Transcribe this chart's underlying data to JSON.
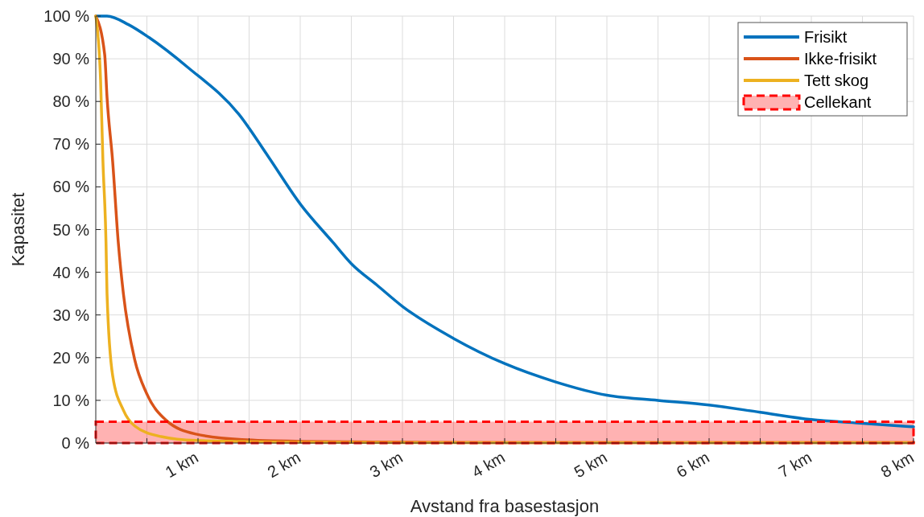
{
  "chart_data": {
    "type": "line",
    "xlabel": "Avstand fra basestasjon",
    "ylabel": "Kapasitet",
    "xlim": [
      0,
      8
    ],
    "ylim": [
      0,
      100
    ],
    "xticks": [
      {
        "value": 0.5,
        "label": null
      },
      {
        "value": 1,
        "label": "1 km"
      },
      {
        "value": 1.5,
        "label": null
      },
      {
        "value": 2,
        "label": "2 km"
      },
      {
        "value": 2.5,
        "label": null
      },
      {
        "value": 3,
        "label": "3 km"
      },
      {
        "value": 3.5,
        "label": null
      },
      {
        "value": 4,
        "label": "4 km"
      },
      {
        "value": 4.5,
        "label": null
      },
      {
        "value": 5,
        "label": "5 km"
      },
      {
        "value": 5.5,
        "label": null
      },
      {
        "value": 6,
        "label": "6 km"
      },
      {
        "value": 6.5,
        "label": null
      },
      {
        "value": 7,
        "label": "7 km"
      },
      {
        "value": 7.5,
        "label": null
      },
      {
        "value": 8,
        "label": "8 km"
      }
    ],
    "yticks": [
      {
        "value": 0,
        "label": "0 %"
      },
      {
        "value": 10,
        "label": "10 %"
      },
      {
        "value": 20,
        "label": "20 %"
      },
      {
        "value": 30,
        "label": "30 %"
      },
      {
        "value": 40,
        "label": "40 %"
      },
      {
        "value": 50,
        "label": "50 %"
      },
      {
        "value": 60,
        "label": "60 %"
      },
      {
        "value": 70,
        "label": "70 %"
      },
      {
        "value": 80,
        "label": "80 %"
      },
      {
        "value": 90,
        "label": "90 %"
      },
      {
        "value": 100,
        "label": "100 %"
      }
    ],
    "grid": true,
    "legend": "top right",
    "line_style": "solid",
    "marker": "none",
    "series": [
      {
        "name": "Frisikt",
        "color": "#0072bd",
        "x": [
          0,
          0.11,
          0.32,
          0.52,
          0.9,
          1.4,
          1.69,
          2.0,
          2.32,
          2.5,
          2.75,
          3,
          3.5,
          4,
          4.5,
          5,
          5.5,
          6,
          6.5,
          7,
          7.5,
          8
        ],
        "values": [
          100,
          100,
          98,
          95,
          88,
          77,
          67,
          56,
          47,
          42,
          37,
          32,
          24.5,
          18.6,
          14.3,
          11.2,
          10,
          8.9,
          7.2,
          5.5,
          4.6,
          3.8
        ]
      },
      {
        "name": "Ikke-frisikt",
        "color": "#d95319",
        "x": [
          0,
          0.087,
          0.11,
          0.165,
          0.22,
          0.27,
          0.38,
          0.5,
          0.69,
          0.98,
          1.43,
          2,
          3,
          4,
          5,
          6,
          7,
          8
        ],
        "values": [
          100,
          91,
          81,
          66,
          47,
          35,
          19.6,
          11.5,
          5.3,
          2.1,
          0.8,
          0.4,
          0.2,
          0.1,
          0.1,
          0.1,
          0.1,
          0.1
        ]
      },
      {
        "name": "Tett skog",
        "color": "#edb120",
        "x": [
          0,
          0.047,
          0.07,
          0.1,
          0.11,
          0.165,
          0.27,
          0.38,
          0.64,
          0.98,
          2,
          3,
          4,
          5,
          6,
          7,
          8
        ],
        "values": [
          100,
          85,
          66,
          47,
          35,
          15.8,
          7.7,
          4,
          1.5,
          0.6,
          0.2,
          0.1,
          0.1,
          0.1,
          0.1,
          0.1,
          0.1
        ]
      }
    ],
    "bands": [
      {
        "axis": "y",
        "from": 0,
        "to": 5,
        "label": "Cellekant",
        "color": "#ff0000"
      }
    ]
  }
}
